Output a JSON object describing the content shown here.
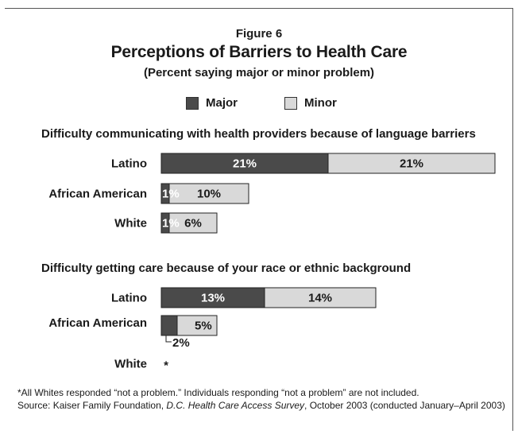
{
  "figure": {
    "label": "Figure 6",
    "title": "Perceptions of Barriers to Health Care",
    "subtitle": "(Percent saying major or minor problem)"
  },
  "legend": {
    "major": "Major",
    "minor": "Minor"
  },
  "colors": {
    "major": "#4a4a4a",
    "minor": "#d9d9d9",
    "border": "#222222"
  },
  "chart_data": {
    "type": "bar",
    "orientation": "horizontal",
    "stacked": true,
    "series_names": [
      "Major",
      "Minor"
    ],
    "groups": [
      {
        "title": "Difficulty communicating with health providers because of language barriers",
        "rows": [
          {
            "category": "Latino",
            "major": 21,
            "minor": 21,
            "major_label": "21%",
            "minor_label": "21%"
          },
          {
            "category": "African American",
            "major": 1,
            "minor": 10,
            "major_label": "1%",
            "minor_label": "10%"
          },
          {
            "category": "White",
            "major": 1,
            "minor": 6,
            "major_label": "1%",
            "minor_label": "6%"
          }
        ]
      },
      {
        "title": "Difficulty getting care because of your race or ethnic background",
        "rows": [
          {
            "category": "Latino",
            "major": 13,
            "minor": 14,
            "major_label": "13%",
            "minor_label": "14%"
          },
          {
            "category": "African American",
            "major": 2,
            "minor": 5,
            "major_label": "2%",
            "minor_label": "5%",
            "callout": "major"
          },
          {
            "category": "White",
            "major": 0,
            "minor": 0,
            "marker": "*"
          }
        ]
      }
    ]
  },
  "notes": {
    "footnote": "*All Whites responded “not a problem.” Individuals responding “not a problem” are not included.",
    "source_prefix": "Source: Kaiser Family Foundation, ",
    "source_title": "D.C. Health Care Access Survey",
    "source_suffix": ", October 2003 (conducted January–April 2003)"
  }
}
